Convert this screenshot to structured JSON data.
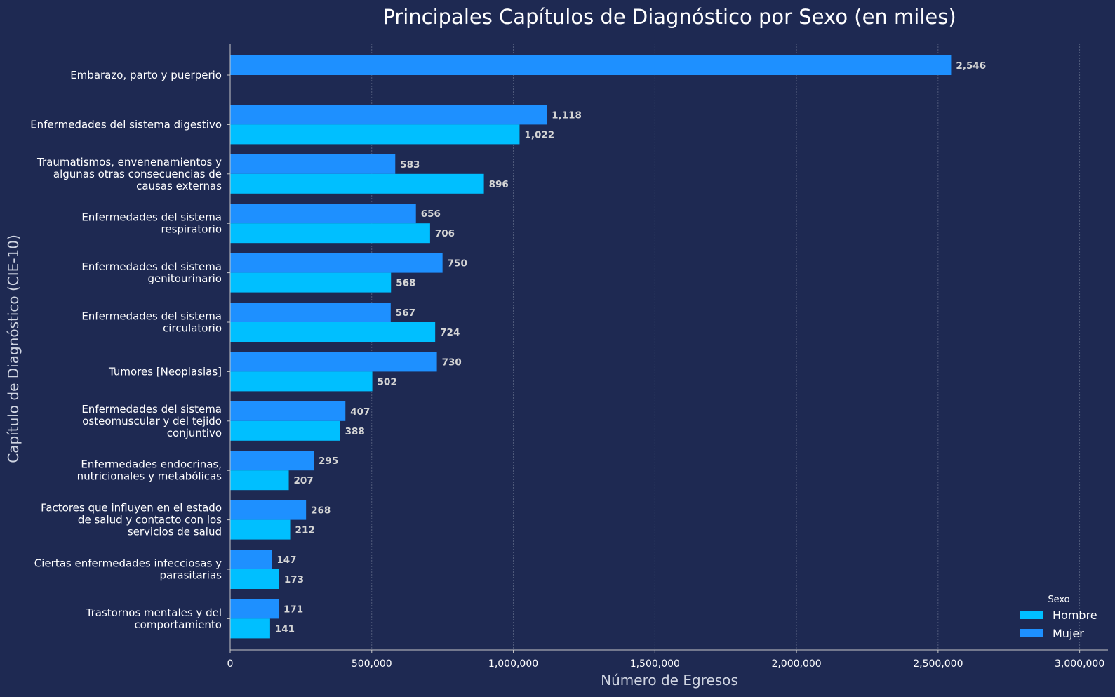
{
  "chart_data": {
    "type": "bar",
    "orientation": "horizontal",
    "title": "Principales Capítulos de Diagnóstico por Sexo (en miles)",
    "xlabel": "Número de Egresos",
    "ylabel": "Capítulo de Diagnóstico (CIE-10)",
    "xlim": [
      0,
      3100000
    ],
    "x_ticks": [
      0,
      500000,
      1000000,
      1500000,
      2000000,
      2500000,
      3000000
    ],
    "x_tick_labels": [
      "0",
      "500,000",
      "1,000,000",
      "1,500,000",
      "2,000,000",
      "2,500,000",
      "3,000,000"
    ],
    "grid": "vertical dashed",
    "legend": {
      "title": "Sexo",
      "placement": "bottom-right"
    },
    "categories": [
      [
        "Embarazo, parto y puerperio"
      ],
      [
        "Enfermedades del sistema digestivo"
      ],
      [
        "Traumatismos, envenenamientos y",
        "algunas otras consecuencias de",
        "causas externas"
      ],
      [
        "Enfermedades del sistema",
        "respiratorio"
      ],
      [
        "Enfermedades del sistema",
        "genitourinario"
      ],
      [
        "Enfermedades del sistema",
        "circulatorio"
      ],
      [
        "Tumores [Neoplasias]"
      ],
      [
        "Enfermedades del sistema",
        "osteomuscular y del tejido",
        "conjuntivo"
      ],
      [
        "Enfermedades endocrinas,",
        "nutricionales y metabólicas"
      ],
      [
        "Factores que influyen en el estado",
        "de salud y contacto con los",
        "servicios de salud"
      ],
      [
        "Ciertas enfermedades infecciosas y",
        "parasitarias"
      ],
      [
        "Trastornos mentales y del",
        "comportamiento"
      ]
    ],
    "series": [
      {
        "name": "Hombre",
        "color": "#00bfff",
        "values": [
          null,
          1022000,
          896000,
          706000,
          568000,
          724000,
          502000,
          388000,
          207000,
          212000,
          173000,
          141000
        ],
        "labels": [
          null,
          "1,022",
          "896",
          "706",
          "568",
          "724",
          "502",
          "388",
          "207",
          "212",
          "173",
          "141"
        ]
      },
      {
        "name": "Mujer",
        "color": "#1e90ff",
        "values": [
          2546000,
          1118000,
          583000,
          656000,
          750000,
          567000,
          730000,
          407000,
          295000,
          268000,
          147000,
          171000
        ],
        "labels": [
          "2,546",
          "1,118",
          "583",
          "656",
          "750",
          "567",
          "730",
          "407",
          "295",
          "268",
          "147",
          "171"
        ]
      }
    ]
  }
}
